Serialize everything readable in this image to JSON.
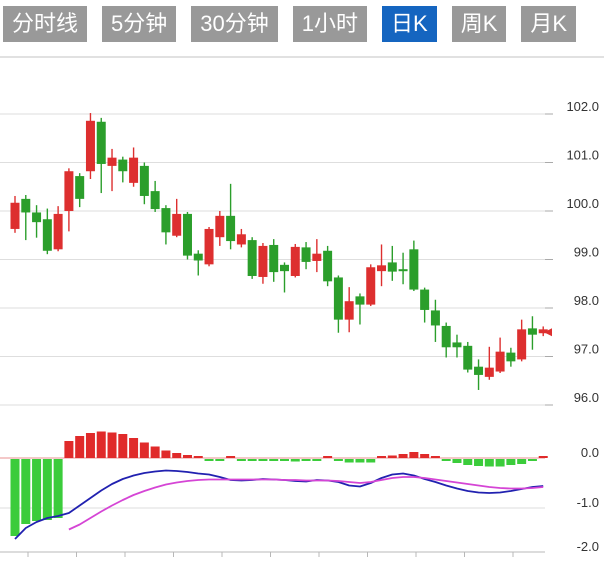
{
  "tabs": [
    {
      "label": "分时线",
      "active": false
    },
    {
      "label": "5分钟",
      "active": false
    },
    {
      "label": "30分钟",
      "active": false
    },
    {
      "label": "1小时",
      "active": false
    },
    {
      "label": "日K",
      "active": true
    },
    {
      "label": "周K",
      "active": false
    },
    {
      "label": "月K",
      "active": false
    }
  ],
  "colors": {
    "tab_bg": "#999999",
    "tab_active_bg": "#1565c0",
    "tab_text": "#ffffff",
    "candle_up": "#dd2f2f",
    "candle_down": "#2b9e2b",
    "hist_up": "#e02a2a",
    "hist_down": "#3bcc3b",
    "dif_line": "#2121b0",
    "dea_line": "#d545d5",
    "zero_line": "#e89090",
    "grid": "#dedede",
    "axis": "#c6c6c6",
    "label_text": "#333333",
    "marker": "#dd2f2f"
  },
  "chart_data": {
    "type": "candlestick+macd",
    "legend_position": "none",
    "grid": true,
    "price_axis": {
      "tick_labels": [
        "102.0",
        "101.0",
        "100.0",
        "99.0",
        "98.0",
        "97.0",
        "96.0"
      ],
      "tick_values": [
        102.0,
        101.0,
        100.0,
        99.0,
        98.0,
        97.0,
        96.0
      ],
      "range": [
        96.0,
        103.2
      ]
    },
    "macd_axis": {
      "tick_labels": [
        "0.0",
        "-1.0",
        "-2.0"
      ],
      "tick_values": [
        0.0,
        -1.0,
        -2.0
      ],
      "range": [
        -2.0,
        0.8
      ]
    },
    "last_price_marker": 97.5,
    "candles_ohlc": [
      [
        99.63,
        100.31,
        99.55,
        100.17
      ],
      [
        100.25,
        100.33,
        99.4,
        99.97
      ],
      [
        99.97,
        100.12,
        99.45,
        99.77
      ],
      [
        99.83,
        100.05,
        99.11,
        99.18
      ],
      [
        99.21,
        100.1,
        99.17,
        99.94
      ],
      [
        100.0,
        100.88,
        99.58,
        100.82
      ],
      [
        100.72,
        100.78,
        100.08,
        100.25
      ],
      [
        100.82,
        102.02,
        100.66,
        101.86
      ],
      [
        101.84,
        101.92,
        100.37,
        100.97
      ],
      [
        100.93,
        101.28,
        100.41,
        101.1
      ],
      [
        101.06,
        101.12,
        100.59,
        100.82
      ],
      [
        100.58,
        101.31,
        100.5,
        101.1
      ],
      [
        100.93,
        101.0,
        100.14,
        100.31
      ],
      [
        100.41,
        100.62,
        99.98,
        100.04
      ],
      [
        100.06,
        100.12,
        99.31,
        99.56
      ],
      [
        99.49,
        100.25,
        99.46,
        99.94
      ],
      [
        99.94,
        99.98,
        99.0,
        99.08
      ],
      [
        99.12,
        99.19,
        98.67,
        98.98
      ],
      [
        98.9,
        99.67,
        98.86,
        99.63
      ],
      [
        99.46,
        100.0,
        99.28,
        99.9
      ],
      [
        99.9,
        100.56,
        99.21,
        99.38
      ],
      [
        99.31,
        99.63,
        99.25,
        99.52
      ],
      [
        99.4,
        99.46,
        98.6,
        98.66
      ],
      [
        98.64,
        99.34,
        98.5,
        99.28
      ],
      [
        99.3,
        99.42,
        98.54,
        98.74
      ],
      [
        98.89,
        98.94,
        98.32,
        98.76
      ],
      [
        98.66,
        99.32,
        98.63,
        99.26
      ],
      [
        99.25,
        99.36,
        98.8,
        98.95
      ],
      [
        98.97,
        99.42,
        98.74,
        99.12
      ],
      [
        99.18,
        99.28,
        98.45,
        98.55
      ],
      [
        98.63,
        98.67,
        97.49,
        97.76
      ],
      [
        97.76,
        98.43,
        97.5,
        98.14
      ],
      [
        98.24,
        98.3,
        97.66,
        98.07
      ],
      [
        98.07,
        98.9,
        98.04,
        98.84
      ],
      [
        98.76,
        99.31,
        98.45,
        98.88
      ],
      [
        98.94,
        99.28,
        98.56,
        98.75
      ],
      [
        98.8,
        99.14,
        98.49,
        98.76
      ],
      [
        99.21,
        99.39,
        98.35,
        98.38
      ],
      [
        98.38,
        98.42,
        97.7,
        97.96
      ],
      [
        97.95,
        98.17,
        97.3,
        97.64
      ],
      [
        97.63,
        97.7,
        96.98,
        97.19
      ],
      [
        97.29,
        97.45,
        96.98,
        97.19
      ],
      [
        97.22,
        97.3,
        96.67,
        96.73
      ],
      [
        96.79,
        96.94,
        96.31,
        96.62
      ],
      [
        96.58,
        97.2,
        96.52,
        96.77
      ],
      [
        96.69,
        97.39,
        96.66,
        97.1
      ],
      [
        97.08,
        97.18,
        96.79,
        96.9
      ],
      [
        96.94,
        97.76,
        96.9,
        97.56
      ],
      [
        97.58,
        97.83,
        97.14,
        97.45
      ],
      [
        97.48,
        97.62,
        97.42,
        97.56
      ]
    ],
    "macd": {
      "hist": [
        -1.54,
        -1.3,
        -1.24,
        -1.22,
        -1.18,
        0.34,
        0.44,
        0.5,
        0.53,
        0.51,
        0.48,
        0.4,
        0.31,
        0.23,
        0.15,
        0.1,
        0.06,
        0.02,
        -0.03,
        -0.03,
        0.03,
        -0.02,
        -0.02,
        -0.03,
        -0.04,
        -0.04,
        -0.05,
        -0.04,
        -0.02,
        0.03,
        -0.04,
        -0.07,
        -0.07,
        -0.07,
        0.02,
        0.05,
        0.08,
        0.12,
        0.08,
        0.03,
        -0.03,
        -0.08,
        -0.12,
        -0.14,
        -0.15,
        -0.15,
        -0.12,
        -0.1,
        -0.04,
        0.04
      ],
      "dif": [
        -1.62,
        -1.4,
        -1.28,
        -1.2,
        -1.16,
        -1.1,
        -0.95,
        -0.8,
        -0.65,
        -0.52,
        -0.42,
        -0.35,
        -0.3,
        -0.27,
        -0.25,
        -0.26,
        -0.28,
        -0.31,
        -0.33,
        -0.38,
        -0.44,
        -0.45,
        -0.44,
        -0.42,
        -0.43,
        -0.44,
        -0.46,
        -0.47,
        -0.44,
        -0.45,
        -0.48,
        -0.55,
        -0.57,
        -0.5,
        -0.4,
        -0.33,
        -0.31,
        -0.35,
        -0.42,
        -0.48,
        -0.55,
        -0.61,
        -0.66,
        -0.69,
        -0.7,
        -0.69,
        -0.66,
        -0.62,
        -0.58,
        -0.56
      ],
      "dea": [
        null,
        null,
        null,
        null,
        null,
        -1.43,
        -1.33,
        -1.2,
        -1.07,
        -0.95,
        -0.84,
        -0.74,
        -0.66,
        -0.59,
        -0.53,
        -0.49,
        -0.46,
        -0.44,
        -0.43,
        -0.43,
        -0.43,
        -0.43,
        -0.43,
        -0.43,
        -0.43,
        -0.44,
        -0.44,
        -0.45,
        -0.45,
        -0.45,
        -0.46,
        -0.48,
        -0.5,
        -0.48,
        -0.44,
        -0.4,
        -0.38,
        -0.38,
        -0.4,
        -0.43,
        -0.46,
        -0.49,
        -0.52,
        -0.55,
        -0.58,
        -0.6,
        -0.61,
        -0.61,
        -0.6,
        -0.58
      ]
    }
  }
}
